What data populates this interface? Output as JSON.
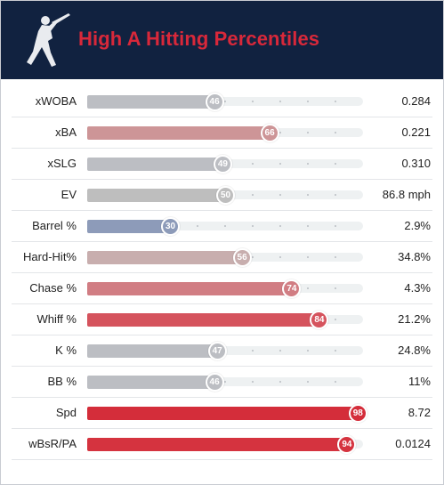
{
  "header": {
    "title": "High A Hitting Percentiles",
    "logo_icon": "batter-silhouette-icon",
    "background_color": "#112240",
    "title_color": "#d8283a"
  },
  "chart_data": {
    "type": "bar",
    "orientation": "horizontal",
    "title": "High A Hitting Percentiles",
    "xlim": [
      0,
      100
    ],
    "rows": [
      {
        "label": "xWOBA",
        "percentile": 46,
        "value": "0.284",
        "color": "#bcbec3"
      },
      {
        "label": "xBA",
        "percentile": 66,
        "value": "0.221",
        "color": "#cd9597"
      },
      {
        "label": "xSLG",
        "percentile": 49,
        "value": "0.310",
        "color": "#bcbec3"
      },
      {
        "label": "EV",
        "percentile": 50,
        "value": "86.8 mph",
        "color": "#bebebe"
      },
      {
        "label": "Barrel %",
        "percentile": 30,
        "value": "2.9%",
        "color": "#8d9bb9"
      },
      {
        "label": "Hard-Hit%",
        "percentile": 56,
        "value": "34.8%",
        "color": "#c8aeae"
      },
      {
        "label": "Chase %",
        "percentile": 74,
        "value": "4.3%",
        "color": "#d17d83"
      },
      {
        "label": "Whiff %",
        "percentile": 84,
        "value": "21.2%",
        "color": "#d5535d"
      },
      {
        "label": "K %",
        "percentile": 47,
        "value": "24.8%",
        "color": "#bcbec3"
      },
      {
        "label": "BB %",
        "percentile": 46,
        "value": "11%",
        "color": "#bcbec3"
      },
      {
        "label": "Spd",
        "percentile": 98,
        "value": "8.72",
        "color": "#d42d3a"
      },
      {
        "label": "wBsR/PA",
        "percentile": 94,
        "value": "0.0124",
        "color": "#d5333f"
      }
    ]
  }
}
